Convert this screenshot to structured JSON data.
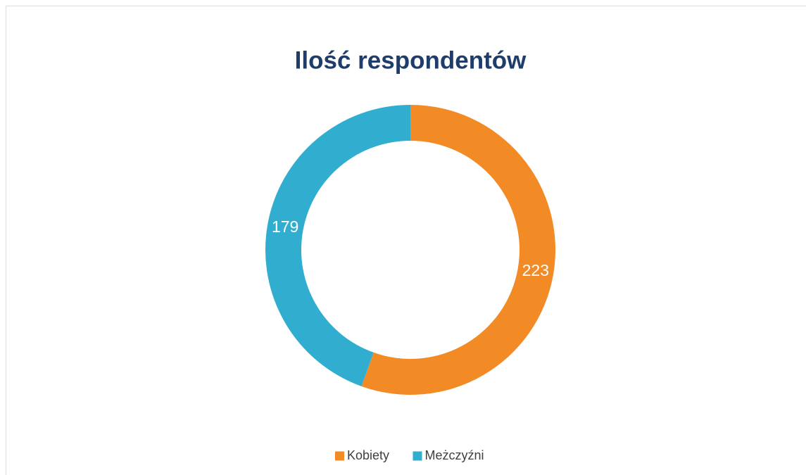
{
  "chart_data": {
    "type": "donut",
    "title": "Ilość respondentów",
    "categories": [
      "Kobiety",
      "Meżczyźni"
    ],
    "values": [
      223,
      179
    ],
    "colors": [
      "#f28a25",
      "#31aecf"
    ],
    "legend": "bottom"
  }
}
